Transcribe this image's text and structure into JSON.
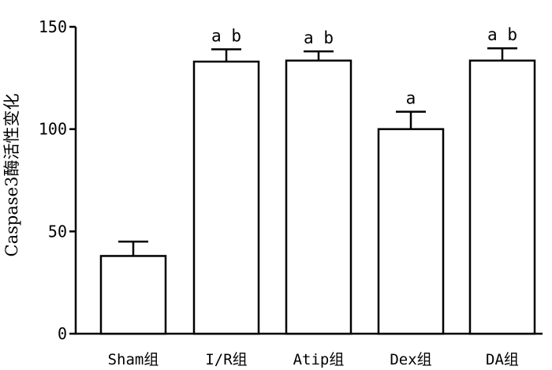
{
  "chart_data": {
    "type": "bar",
    "title": "",
    "xlabel": "",
    "ylabel": "Caspase3酶活性变化",
    "categories": [
      "Sham组",
      "I/R组",
      "Atip组",
      "Dex组",
      "DA组"
    ],
    "values": [
      38,
      133,
      133.5,
      100,
      133.5
    ],
    "errors": [
      7,
      6,
      4.5,
      8.5,
      6
    ],
    "significance": [
      "",
      "a b",
      "a b",
      "a",
      "a b"
    ],
    "ylim": [
      0,
      150
    ],
    "yticks": [
      0,
      50,
      100,
      150
    ],
    "bar_fill": "#ffffff",
    "bar_stroke": "#000000",
    "grid": false,
    "legend": "none"
  }
}
